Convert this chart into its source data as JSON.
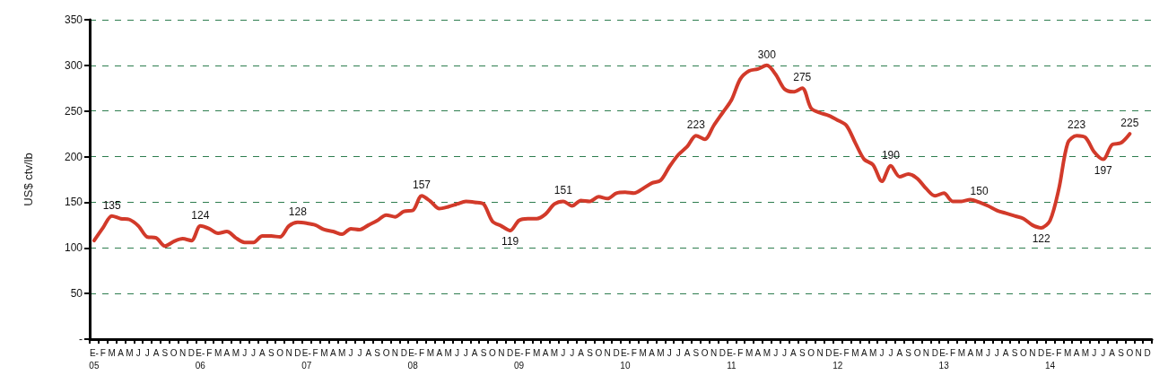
{
  "chart_data": {
    "type": "line",
    "ylabel": "US$ ctv/lb",
    "categories": [
      "E-\n05",
      "F",
      "M",
      "A",
      "M",
      "J",
      "J",
      "A",
      "S",
      "O",
      "N",
      "D",
      "E-\n06",
      "F",
      "M",
      "A",
      "M",
      "J",
      "J",
      "A",
      "S",
      "O",
      "N",
      "D",
      "E-\n07",
      "F",
      "M",
      "A",
      "M",
      "J",
      "J",
      "A",
      "S",
      "O",
      "N",
      "D",
      "E-\n08",
      "F",
      "M",
      "A",
      "M",
      "J",
      "J",
      "A",
      "S",
      "O",
      "N",
      "D",
      "E-\n09",
      "F",
      "M",
      "A",
      "M",
      "J",
      "J",
      "A",
      "S",
      "O",
      "N",
      "D",
      "E-\n10",
      "F",
      "M",
      "A",
      "M",
      "J",
      "J",
      "A",
      "S",
      "O",
      "N",
      "D",
      "E-\n11",
      "F",
      "M",
      "A",
      "M",
      "J",
      "J",
      "A",
      "S",
      "O",
      "N",
      "D",
      "E-\n12",
      "F",
      "M",
      "A",
      "M",
      "J",
      "J",
      "A",
      "S",
      "O",
      "N",
      "D",
      "E-\n13",
      "F",
      "M",
      "A",
      "M",
      "J",
      "J",
      "A",
      "S",
      "O",
      "N",
      "D",
      "E-\n14",
      "F",
      "M",
      "A",
      "M",
      "J",
      "J",
      "A",
      "S",
      "O",
      "N",
      "D"
    ],
    "series": [
      {
        "color": "#d23a2a",
        "values": [
          108,
          122,
          135,
          132,
          131,
          124,
          112,
          111,
          102,
          107,
          110,
          108,
          124,
          121,
          116,
          118,
          111,
          106,
          106,
          113,
          113,
          112,
          124,
          128,
          127,
          125,
          120,
          118,
          115,
          121,
          120,
          125,
          130,
          136,
          134,
          140,
          141,
          157,
          151,
          143,
          145,
          148,
          151,
          150,
          148,
          129,
          124,
          119,
          130,
          132,
          132,
          137,
          148,
          151,
          146,
          152,
          151,
          156,
          154,
          160,
          161,
          160,
          165,
          171,
          174,
          189,
          202,
          211,
          223,
          219,
          234,
          248,
          262,
          285,
          294,
          296,
          300,
          290,
          274,
          271,
          275,
          253,
          248,
          245,
          240,
          234,
          215,
          197,
          191,
          173,
          190,
          178,
          181,
          176,
          165,
          157,
          160,
          151,
          151,
          153,
          150,
          146,
          141,
          138,
          135,
          132,
          125,
          122,
          130,
          165,
          215,
          223,
          221,
          205,
          197,
          213,
          215,
          225,
          null,
          null
        ],
        "value_labels": [
          null,
          null,
          "135",
          null,
          null,
          null,
          null,
          null,
          null,
          null,
          null,
          null,
          "124",
          null,
          null,
          null,
          null,
          null,
          null,
          null,
          null,
          null,
          null,
          "128",
          null,
          null,
          null,
          null,
          null,
          null,
          null,
          null,
          null,
          null,
          null,
          null,
          null,
          "157",
          null,
          null,
          null,
          null,
          null,
          null,
          null,
          null,
          null,
          "119",
          null,
          null,
          null,
          null,
          null,
          "151",
          null,
          null,
          null,
          null,
          null,
          null,
          null,
          null,
          null,
          null,
          null,
          null,
          null,
          null,
          "223",
          null,
          null,
          null,
          null,
          null,
          null,
          null,
          "300",
          null,
          null,
          null,
          "275",
          null,
          null,
          null,
          null,
          null,
          null,
          null,
          null,
          null,
          "190",
          null,
          null,
          null,
          null,
          null,
          null,
          null,
          null,
          null,
          "150",
          null,
          null,
          null,
          null,
          null,
          null,
          "122",
          null,
          null,
          null,
          "223",
          null,
          null,
          "197",
          null,
          null,
          "225",
          null,
          null
        ]
      }
    ],
    "ylim": [
      0,
      350
    ],
    "yticks": [
      {
        "value": 0,
        "label": "-"
      },
      50,
      100,
      150,
      200,
      250,
      300,
      350
    ],
    "grid": "y",
    "line_style": "solid",
    "marker": "none"
  }
}
